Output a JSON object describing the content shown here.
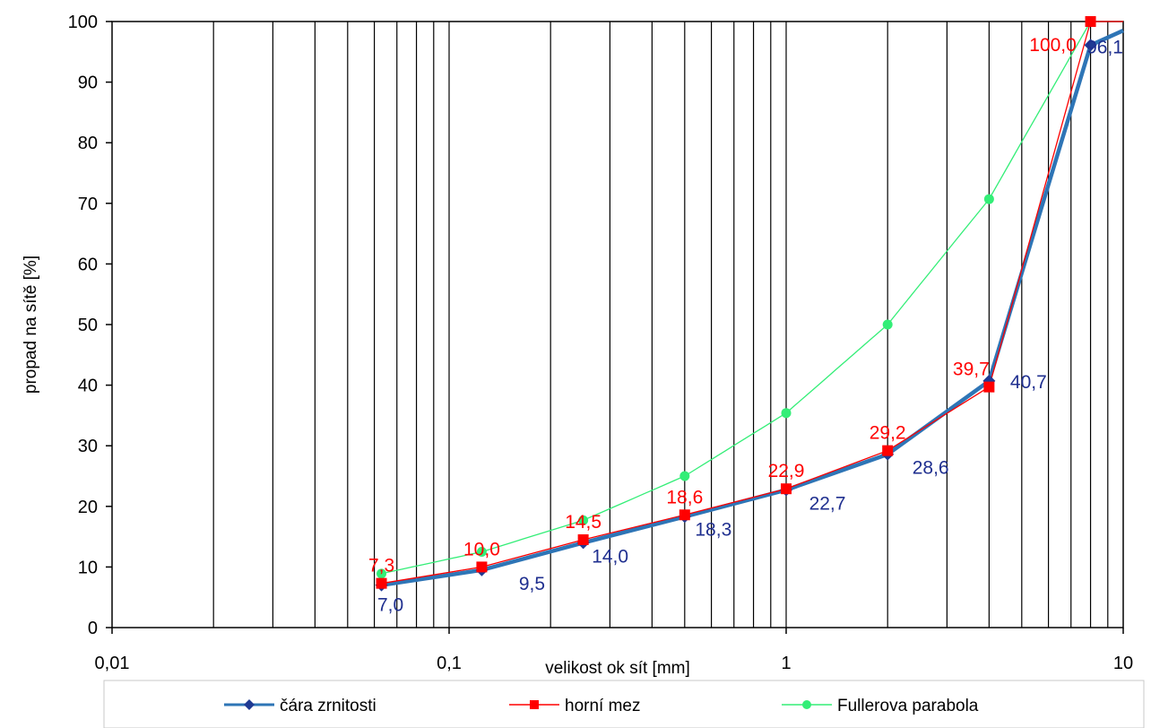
{
  "chart_data": {
    "type": "line",
    "xscale": "log",
    "xlim": [
      0.01,
      10
    ],
    "ylim": [
      0,
      100
    ],
    "xlabel": "velikost ok sít [mm]",
    "ylabel": "propad na sítě [%]",
    "x_tick_labels": [
      "0,01",
      "0,1",
      "1",
      "10"
    ],
    "y_tick_labels": [
      "0",
      "10",
      "20",
      "30",
      "40",
      "50",
      "60",
      "70",
      "80",
      "90",
      "100"
    ],
    "grid": "vertical log gridlines",
    "legend_position": "bottom",
    "series": [
      {
        "name": "čára zrnitosti",
        "color": "#1f3a93",
        "line_color": "#2e75b6",
        "marker": "diamond",
        "x": [
          0.063,
          0.125,
          0.25,
          0.5,
          1,
          2,
          4,
          8,
          10
        ],
        "y": [
          7.0,
          9.5,
          14.0,
          18.3,
          22.7,
          28.6,
          40.7,
          96.1,
          98.5
        ],
        "markers": [
          true,
          true,
          true,
          true,
          true,
          true,
          true,
          true,
          false
        ],
        "labels": [
          "7,0",
          "9,5",
          "14,0",
          "18,3",
          "22,7",
          "28,6",
          "40,7",
          "96,1",
          ""
        ],
        "label_color": "#1f2f8f"
      },
      {
        "name": "horní mez",
        "color": "#ff0000",
        "marker": "square",
        "x": [
          0.063,
          0.125,
          0.25,
          0.5,
          1,
          2,
          4,
          8,
          10
        ],
        "y": [
          7.3,
          10.0,
          14.5,
          18.6,
          22.9,
          29.2,
          39.7,
          100.0,
          100.0
        ],
        "markers": [
          true,
          true,
          true,
          true,
          true,
          true,
          true,
          true,
          false
        ],
        "labels": [
          "7,3",
          "10,0",
          "14,5",
          "18,6",
          "22,9",
          "29,2",
          "39,7",
          "100,0",
          ""
        ],
        "label_color": "#ff0000"
      },
      {
        "name": "Fullerova parabola",
        "color": "#33ee77",
        "marker": "circle",
        "x": [
          0.063,
          0.125,
          0.25,
          0.5,
          1,
          2,
          4,
          8
        ],
        "y": [
          8.9,
          12.5,
          17.7,
          25.0,
          35.4,
          50.0,
          70.7,
          100.0
        ],
        "markers": [
          true,
          true,
          true,
          true,
          true,
          true,
          true,
          true
        ],
        "labels": [
          "",
          "",
          "",
          "",
          "",
          "",
          "",
          ""
        ],
        "label_color": "#33ee77"
      }
    ]
  }
}
